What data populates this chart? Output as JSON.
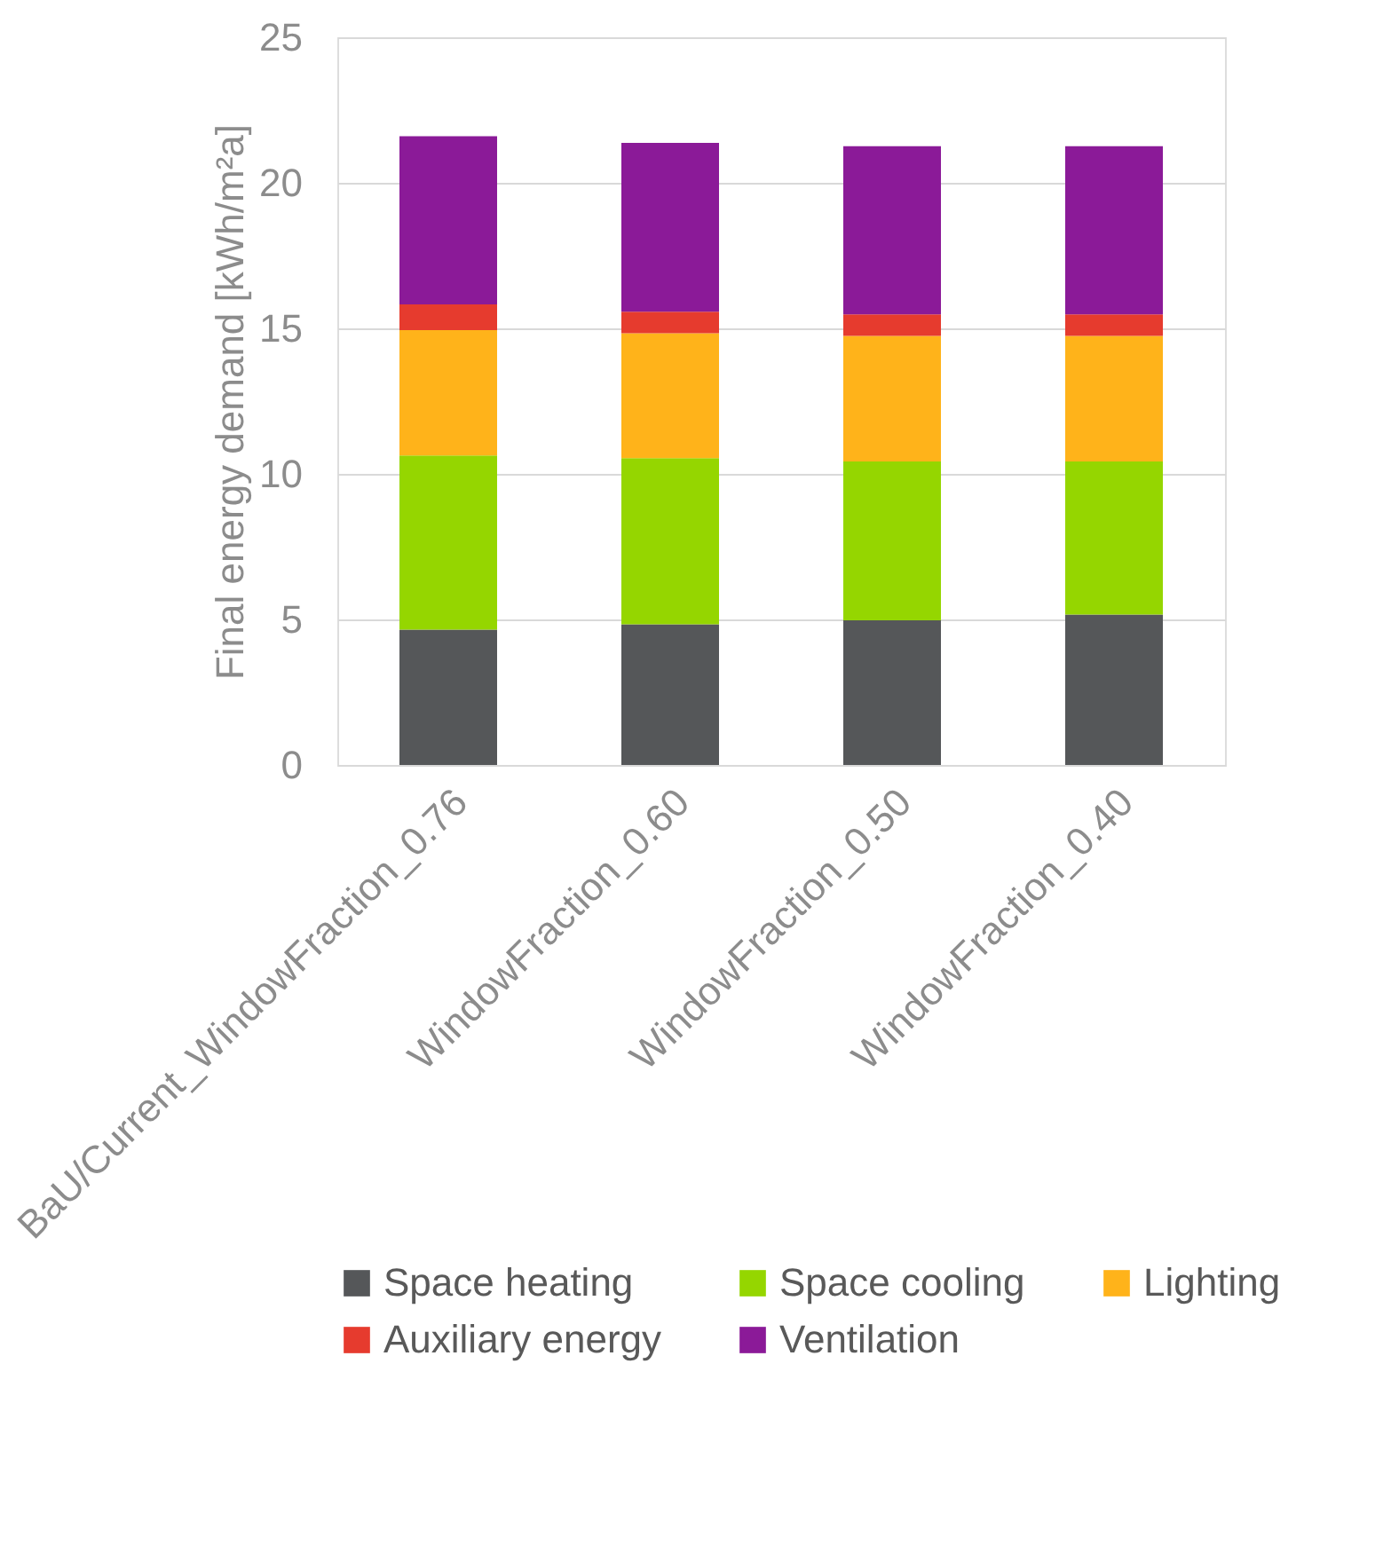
{
  "chart_data": {
    "type": "bar",
    "stacked": true,
    "ylabel": "Final energy demand [kWh/m²a]",
    "categories": [
      "BaU/Current_WindowFraction_0.76",
      "WindowFraction_0.60",
      "WindowFraction_0.50",
      "WindowFraction_0.40"
    ],
    "series": [
      {
        "name": "Space heating",
        "color": "#555759",
        "values": [
          4.65,
          4.83,
          4.97,
          5.17
        ]
      },
      {
        "name": "Space cooling",
        "color": "#95d600",
        "values": [
          5.98,
          5.71,
          5.46,
          5.26
        ]
      },
      {
        "name": "Lighting",
        "color": "#ffb31a",
        "values": [
          4.31,
          4.29,
          4.31,
          4.31
        ]
      },
      {
        "name": "Auxiliary energy",
        "color": "#e63b2e",
        "values": [
          0.88,
          0.74,
          0.74,
          0.74
        ]
      },
      {
        "name": "Ventilation",
        "color": "#8b1a98",
        "values": [
          5.78,
          5.8,
          5.78,
          5.78
        ]
      }
    ],
    "ylim": [
      0,
      25
    ],
    "yticks": [
      0,
      5,
      10,
      15,
      20,
      25
    ],
    "grid": "y",
    "legend": "bottom"
  }
}
